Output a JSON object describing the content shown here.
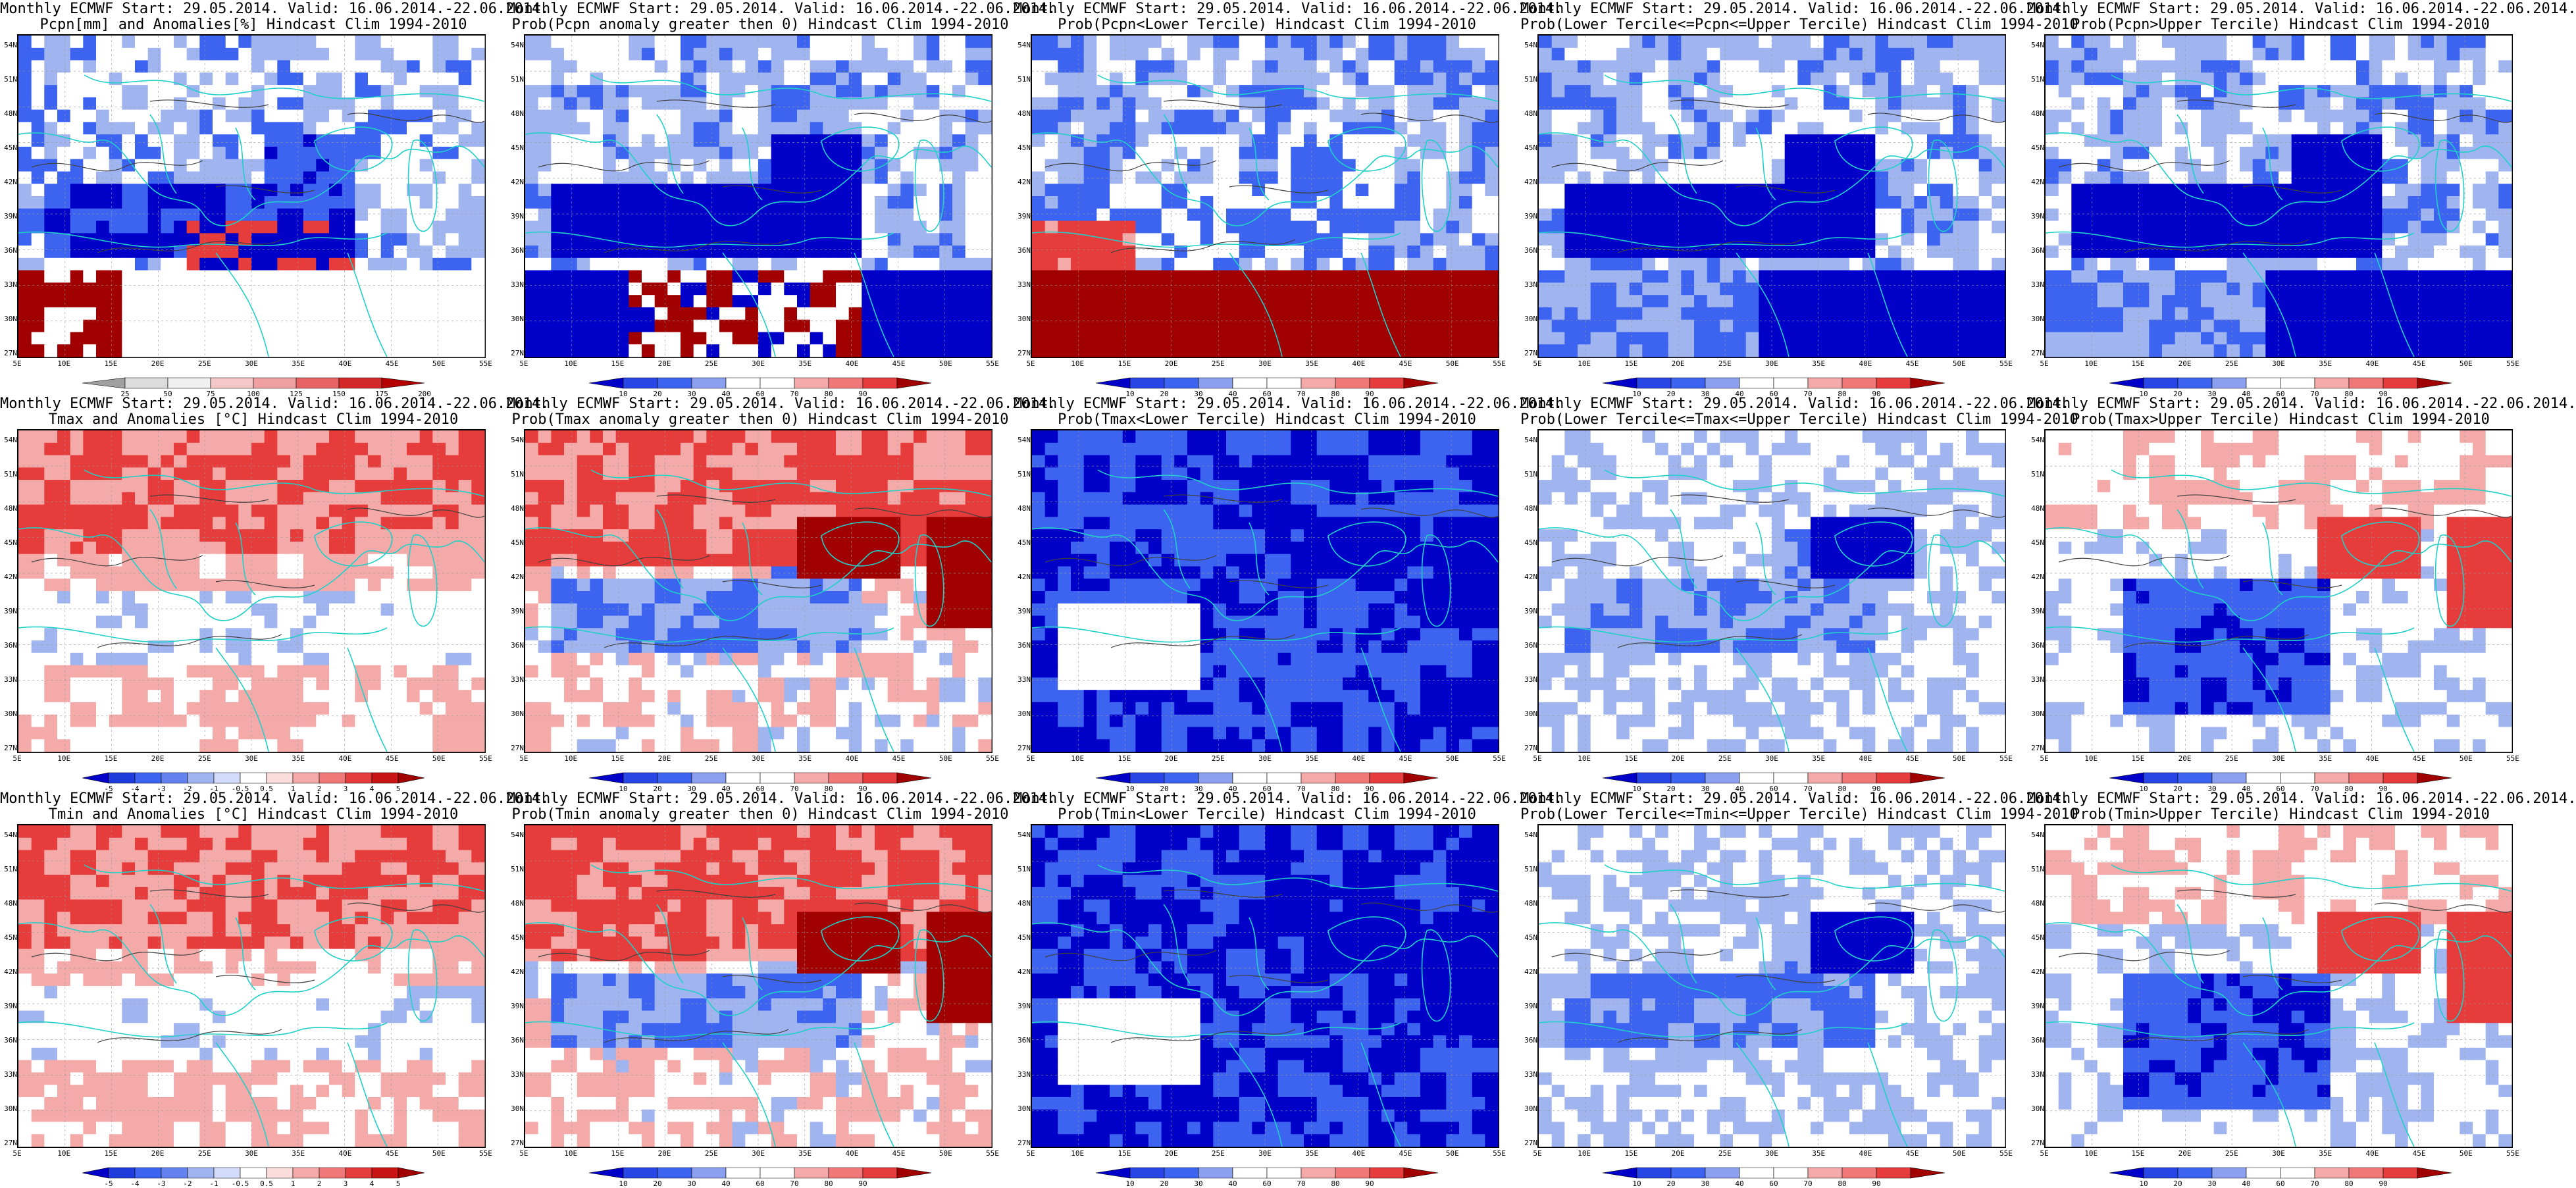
{
  "lat_labels": [
    "54N",
    "51N",
    "48N",
    "45N",
    "42N",
    "39N",
    "36N",
    "33N",
    "30N",
    "27N"
  ],
  "lon_labels": [
    "5E",
    "10E",
    "15E",
    "20E",
    "25E",
    "30E",
    "35E",
    "40E",
    "45E",
    "50E",
    "55E"
  ],
  "colorbars": {
    "pcpn": [
      "25",
      "50",
      "75",
      "100",
      "125",
      "150",
      "175",
      "200"
    ],
    "prob": [
      "10",
      "20",
      "30",
      "40",
      "60",
      "70",
      "80",
      "90"
    ],
    "temp": [
      "-5",
      "-4",
      "-3",
      "-2",
      "-1",
      "-0.5",
      "0.5",
      "1",
      "2",
      "3",
      "4",
      "5"
    ]
  },
  "colors": {
    "blue_dark": "#0000c8",
    "blue_mid": "#3c64f0",
    "blue_light": "#a0b4f0",
    "white": "#ffffff",
    "red_light": "#f5aaaa",
    "red_mid": "#e63c3c",
    "red_dark": "#a00000",
    "border_lines": "#20d0c8",
    "contour_lines": "#404040"
  },
  "panels": [
    {
      "t1": "Monthly ECMWF Start: 29.05.2014. Valid: 16.06.2014.-22.06.2014.",
      "t2": "Pcpn[mm] and Anomalies[%] Hindcast Clim 1994-2010",
      "cb": "pcpn",
      "scheme": "pcpn"
    },
    {
      "t1": "Monthly ECMWF Start: 29.05.2014. Valid: 16.06.2014.-22.06.2014.",
      "t2": "Prob(Pcpn anomaly greater then 0) Hindcast Clim 1994-2010",
      "cb": "prob",
      "scheme": "pcpn_prob"
    },
    {
      "t1": "Monthly ECMWF Start: 29.05.2014. Valid: 16.06.2014.-22.06.2014.",
      "t2": "Prob(Pcpn<Lower Tercile) Hindcast Clim 1994-2010",
      "cb": "prob",
      "scheme": "pcpn_lower"
    },
    {
      "t1": "Monthly ECMWF Start: 29.05.2014. Valid: 16.06.2014.-22.06.2014.",
      "t2": "Prob(Lower Tercile<=Pcpn<=Upper Tercile) Hindcast Clim 1994-2010",
      "cb": "prob",
      "scheme": "pcpn_mid"
    },
    {
      "t1": "Monthly ECMWF Start: 29.05.2014. Valid: 16.06.2014.-22.06.2014.",
      "t2": "Prob(Pcpn>Upper Tercile) Hindcast Clim 1994-2010",
      "cb": "prob",
      "scheme": "pcpn_upper"
    },
    {
      "t1": "Monthly ECMWF Start: 29.05.2014. Valid: 16.06.2014.-22.06.2014.",
      "t2": "Tmax and Anomalies [°C] Hindcast Clim 1994-2010",
      "cb": "temp",
      "scheme": "temp_anom"
    },
    {
      "t1": "Monthly ECMWF Start: 29.05.2014. Valid: 16.06.2014.-22.06.2014.",
      "t2": "Prob(Tmax anomaly greater then 0) Hindcast Clim 1994-2010",
      "cb": "prob",
      "scheme": "warm"
    },
    {
      "t1": "Monthly ECMWF Start: 29.05.2014. Valid: 16.06.2014.-22.06.2014.",
      "t2": "Prob(Tmax<Lower Tercile) Hindcast Clim 1994-2010",
      "cb": "prob",
      "scheme": "cold"
    },
    {
      "t1": "Monthly ECMWF Start: 29.05.2014. Valid: 16.06.2014.-22.06.2014.",
      "t2": "Prob(Lower Tercile<=Tmax<=Upper Tercile) Hindcast Clim 1994-2010",
      "cb": "prob",
      "scheme": "mid"
    },
    {
      "t1": "Monthly ECMWF Start: 29.05.2014. Valid: 16.06.2014.-22.06.2014.",
      "t2": "Prob(Tmax>Upper Tercile) Hindcast Clim 1994-2010",
      "cb": "prob",
      "scheme": "upper"
    },
    {
      "t1": "Monthly ECMWF Start: 29.05.2014. Valid: 16.06.2014.-22.06.2014.",
      "t2": "Tmin and Anomalies [°C] Hindcast Clim 1994-2010",
      "cb": "temp",
      "scheme": "temp_anom"
    },
    {
      "t1": "Monthly ECMWF Start: 29.05.2014. Valid: 16.06.2014.-22.06.2014.",
      "t2": "Prob(Tmin anomaly greater then 0) Hindcast Clim 1994-2010",
      "cb": "prob",
      "scheme": "warm"
    },
    {
      "t1": "Monthly ECMWF Start: 29.05.2014. Valid: 16.06.2014.-22.06.2014.",
      "t2": "Prob(Tmin<Lower Tercile) Hindcast Clim 1994-2010",
      "cb": "prob",
      "scheme": "cold"
    },
    {
      "t1": "Monthly ECMWF Start: 29.05.2014. Valid: 16.06.2014.-22.06.2014.",
      "t2": "Prob(Lower Tercile<=Tmin<=Upper Tercile) Hindcast Clim 1994-2010",
      "cb": "prob",
      "scheme": "mid"
    },
    {
      "t1": "Monthly ECMWF Start: 29.05.2014. Valid: 16.06.2014.-22.06.2014.",
      "t2": "Prob(Tmin>Upper Tercile) Hindcast Clim 1994-2010",
      "cb": "prob",
      "scheme": "upper"
    }
  ]
}
